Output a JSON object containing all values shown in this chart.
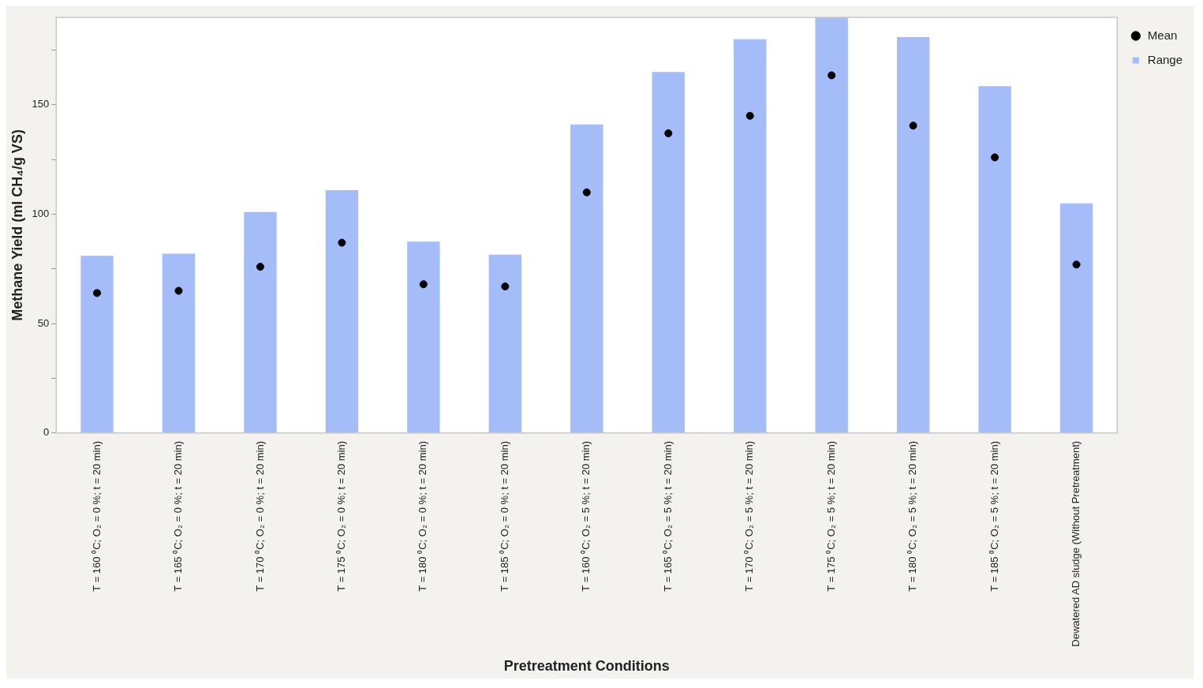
{
  "chart_data": {
    "type": "bar",
    "xlabel": "Pretreatment Conditions",
    "ylabel": "Methane Yield (ml CH₄/g VS)",
    "categories": [
      "T = 160 ⁰C; O₂ = 0 %; t = 20 min)",
      "T = 165 ⁰C; O₂ = 0 %; t = 20 min)",
      "T = 170 ⁰C; O₂ = 0 %; t = 20 min)",
      "T = 175 ⁰C; O₂ = 0 %; t = 20 min)",
      "T = 180 ⁰C; O₂ = 0 %; t = 20 min)",
      "T = 185 ⁰C; O₂ = 0 %; t = 20 min)",
      "T = 160 ⁰C; O₂ = 5 %; t = 20 min)",
      "T = 165 ⁰C; O₂ = 5 %; t = 20 min)",
      "T = 170 ⁰C; O₂ = 5 %; t = 20 min)",
      "T = 175 ⁰C; O₂ = 5 %; t = 20 min)",
      "T = 180 ⁰C; O₂ = 5 %; t = 20 min)",
      "T = 185 ⁰C; O₂ = 5 %; t = 20 min)",
      "Dewatered AD sludge (Without Pretreatment)"
    ],
    "series": [
      {
        "name": "Mean",
        "type": "scatter",
        "color": "#000000",
        "x": [
          "T = 160 ⁰C; O₂ = 0 %; t = 20 min)",
          "T = 165 ⁰C; O₂ = 0 %; t = 20 min)",
          "T = 170 ⁰C; O₂ = 0 %; t = 20 min)",
          "T = 175 ⁰C; O₂ = 0 %; t = 20 min)",
          "T = 180 ⁰C; O₂ = 0 %; t = 20 min)",
          "T = 185 ⁰C; O₂ = 0 %; t = 20 min)",
          "T = 160 ⁰C; O₂ = 5 %; t = 20 min)",
          "T = 165 ⁰C; O₂ = 5 %; t = 20 min)",
          "T = 170 ⁰C; O₂ = 5 %; t = 20 min)",
          "T = 175 ⁰C; O₂ = 5 %; t = 20 min)",
          "T = 180 ⁰C; O₂ = 5 %; t = 20 min)",
          "T = 185 ⁰C; O₂ = 5 %; t = 20 min)",
          "Dewatered AD sludge (Without Pretreatment)"
        ],
        "values": [
          64,
          65,
          76,
          87,
          68,
          67,
          110,
          137,
          145,
          163.5,
          140.5,
          126,
          77
        ]
      },
      {
        "name": "Range",
        "color": "#a4bcf8",
        "values": [
          81,
          82,
          101,
          111,
          87.5,
          81.5,
          141,
          165,
          180,
          190,
          181,
          158.5,
          105
        ]
      }
    ],
    "ylim": [
      0,
      190
    ],
    "yticks": [
      0,
      {
        "value": 25,
        "label": null
      },
      50,
      {
        "value": 75,
        "label": null
      },
      100,
      {
        "value": 125,
        "label": null
      },
      150,
      {
        "value": 175,
        "label": null
      }
    ],
    "grid": false,
    "legend": "top right",
    "marker": "circle"
  }
}
